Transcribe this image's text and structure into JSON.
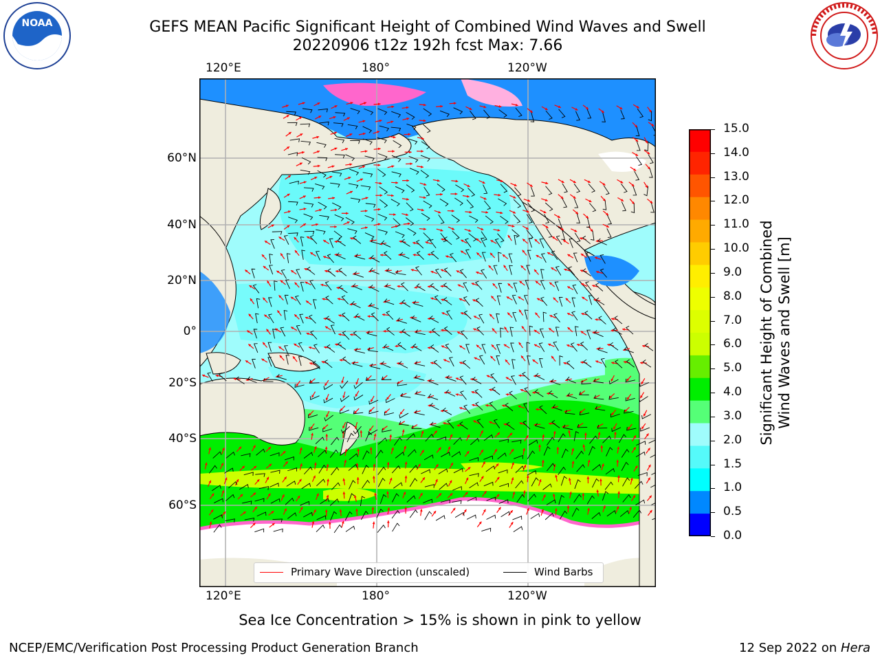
{
  "header": {
    "title": "GEFS MEAN Pacific Significant Height of Combined Wind Waves and Swell",
    "subtitle": "20220906 t12z 192h fcst   Max: 7.66"
  },
  "logos": {
    "left": {
      "text": "NOAA",
      "ring_text": "NATIONAL OCEANIC AND ATMOSPHERIC ADMINISTRATION · U.S. DEPARTMENT OF COMMERCE"
    },
    "right": {
      "ring_text": "NATIONAL WEATHER SERVICE"
    }
  },
  "map": {
    "top_lon_labels": [
      "120°E",
      "180°",
      "120°W"
    ],
    "bottom_lon_labels": [
      "120°E",
      "180°",
      "120°W"
    ],
    "lat_labels": [
      "60°N",
      "40°N",
      "20°N",
      "0°",
      "20°S",
      "40°S",
      "60°S"
    ],
    "ocean_base_color": "#9ffcfc",
    "land_color": "#efedde"
  },
  "legend": {
    "wave_label": "Primary Wave Direction (unscaled)",
    "barb_label": "Wind Barbs",
    "wave_color": "#ff0000",
    "barb_color": "#000000"
  },
  "colorbar": {
    "title_line1": "Significant Height of Combined",
    "title_line2": "Wind Waves and Swell [m]",
    "ticks": [
      "15.0",
      "14.0",
      "13.0",
      "12.0",
      "11.0",
      "10.0",
      "9.0",
      "8.0",
      "7.0",
      "6.0",
      "5.0",
      "4.0",
      "3.0",
      "2.0",
      "1.5",
      "1.0",
      "0.5",
      "0.0"
    ],
    "colors": [
      "#ff0000",
      "#ff2400",
      "#ff5500",
      "#ff8800",
      "#ffaa00",
      "#ffcc00",
      "#ffee00",
      "#eeff00",
      "#ddff00",
      "#ccff00",
      "#66ee00",
      "#00ee00",
      "#55ff77",
      "#9ffcfc",
      "#55fafa",
      "#00ffff",
      "#0088ff",
      "#0000ff"
    ]
  },
  "note": "Sea Ice Concentration > 15% is shown in pink to yellow",
  "footer": {
    "left": "NCEP/EMC/Verification Post Processing Product Generation Branch",
    "right_prefix": "12 Sep 2022 on ",
    "right_machine": "Hera"
  }
}
